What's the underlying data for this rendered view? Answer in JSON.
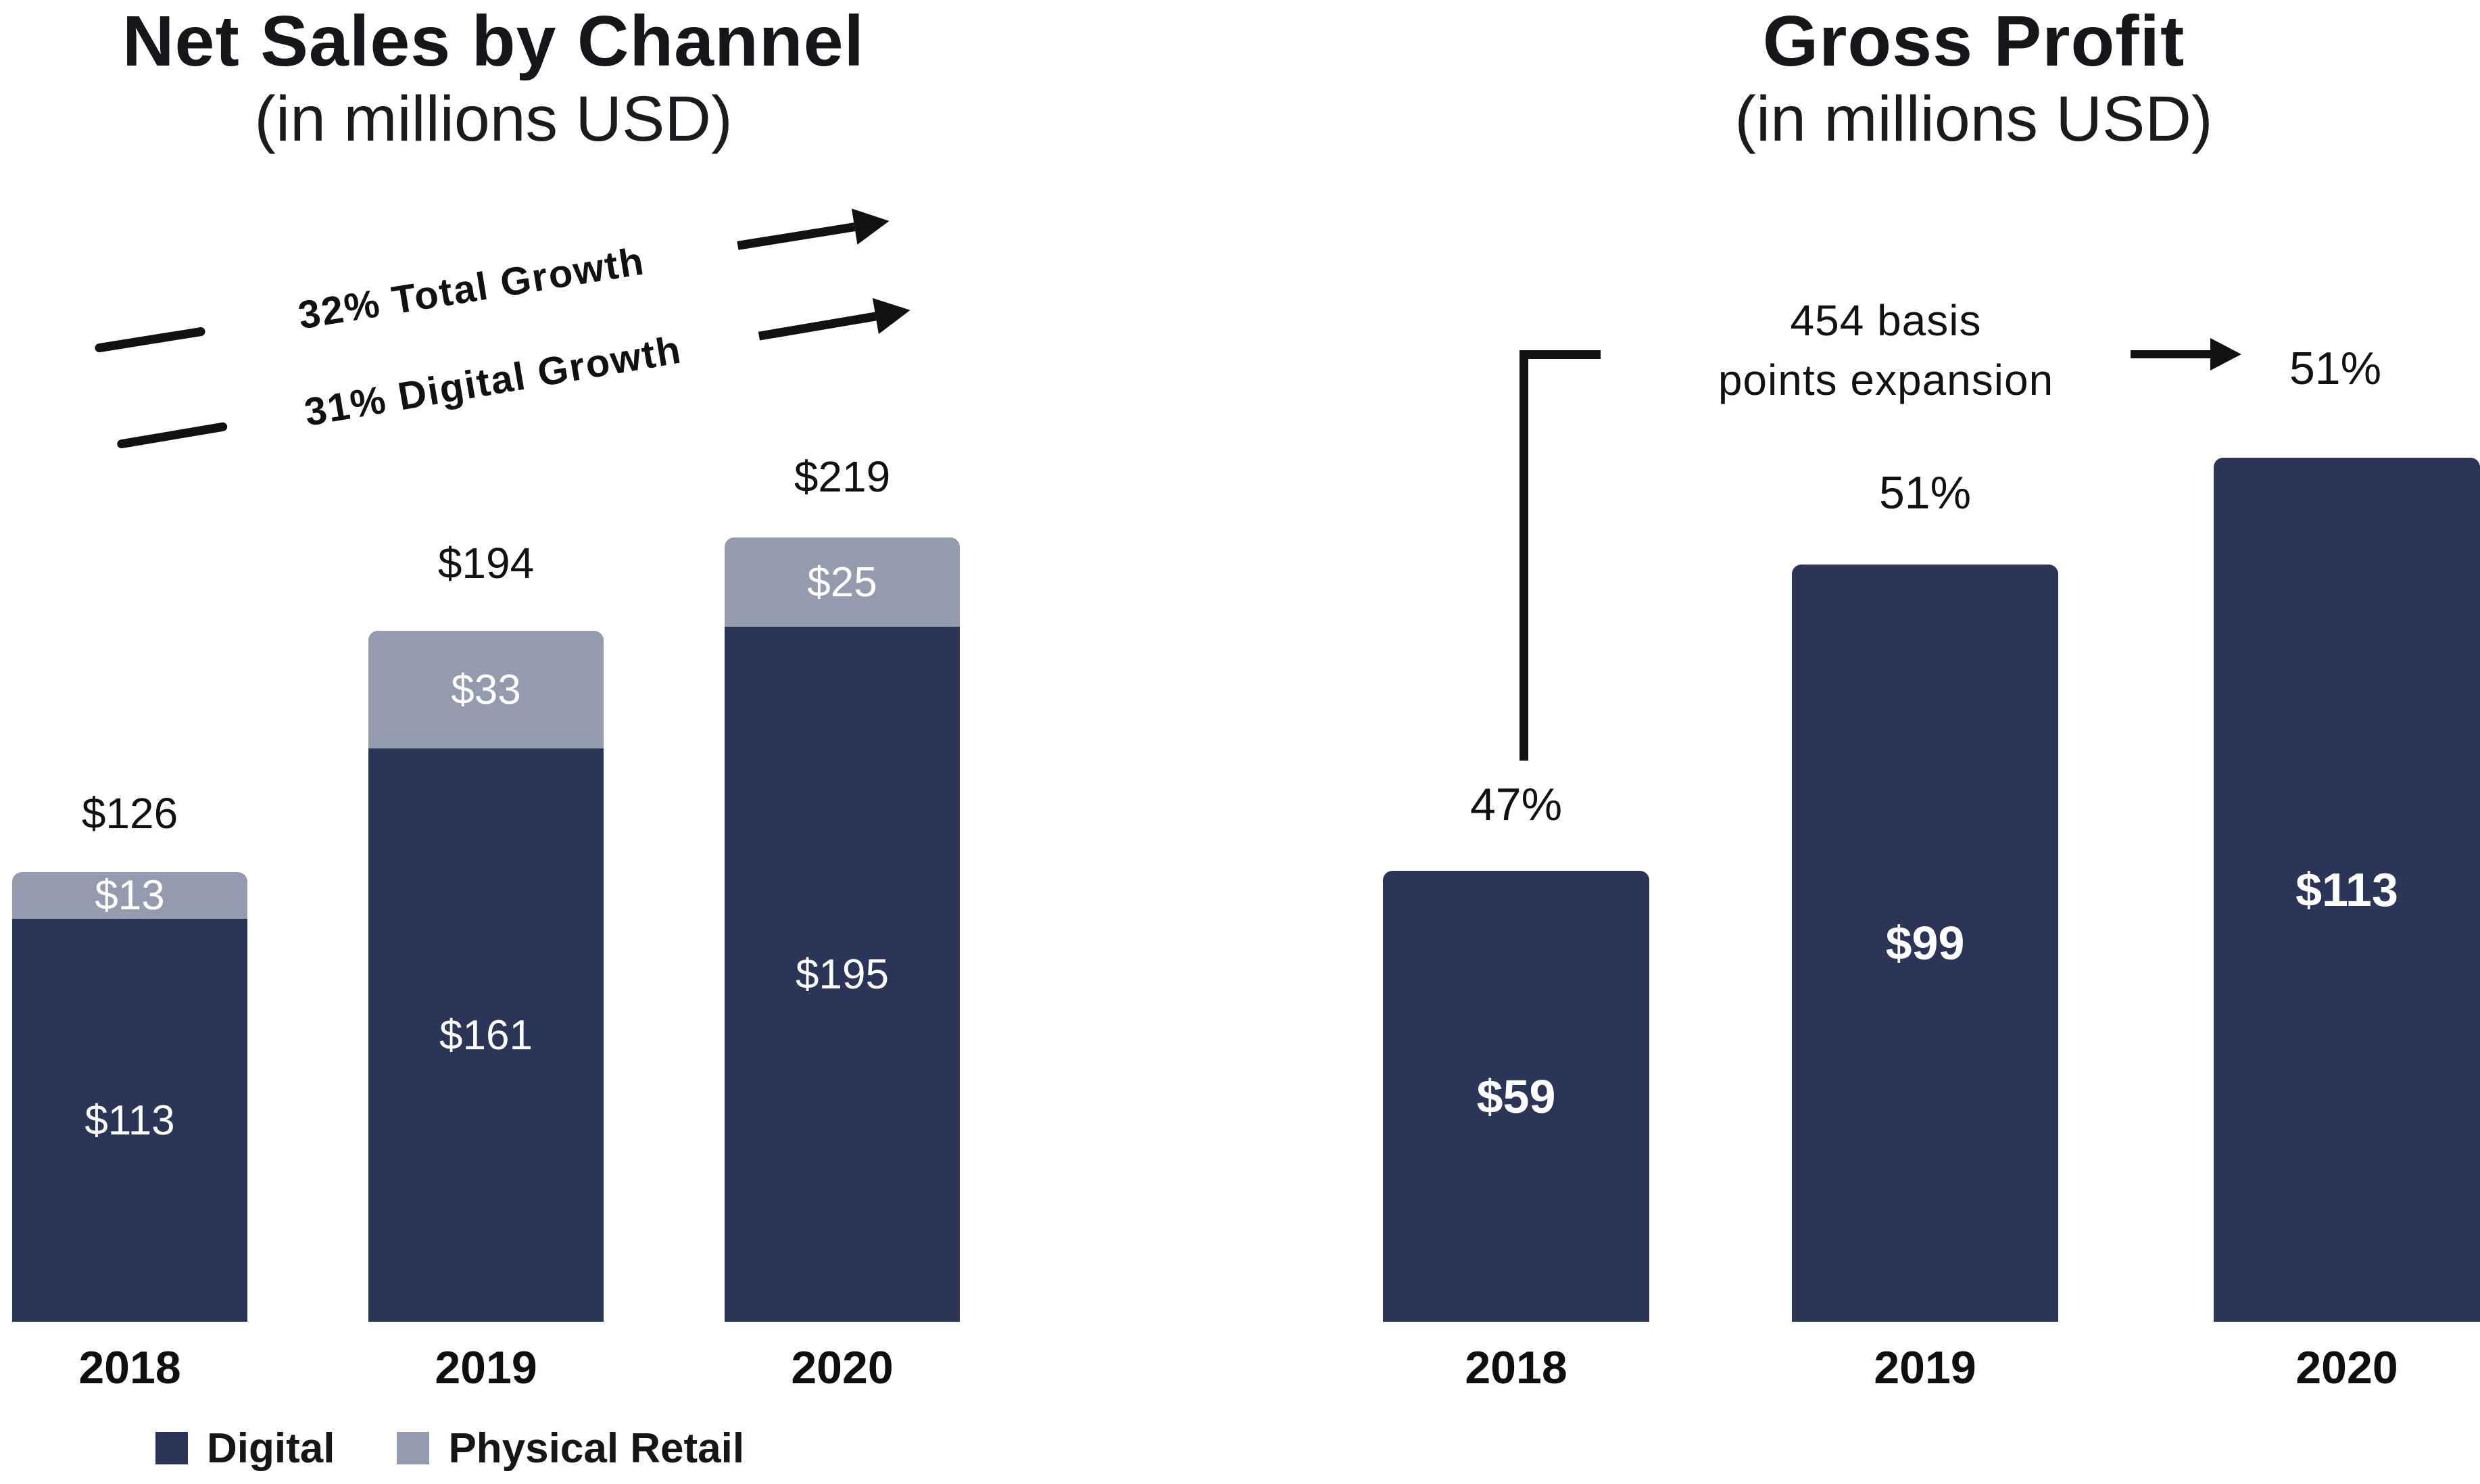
{
  "colors": {
    "digital_navy": "#2a3557",
    "physical_gray": "#939bae",
    "ink": "#111111",
    "background": "#ffffff"
  },
  "chart_data": [
    {
      "type": "bar",
      "stacked": true,
      "title": "Net Sales by Channel",
      "subtitle": "(in millions USD)",
      "categories": [
        "2018",
        "2019",
        "2020"
      ],
      "series": [
        {
          "name": "Digital",
          "color": "#2a3557",
          "values": [
            113,
            161,
            195
          ]
        },
        {
          "name": "Physical Retail",
          "color": "#939bae",
          "values": [
            13,
            33,
            25
          ]
        }
      ],
      "totals": [
        126,
        194,
        219
      ],
      "labels": {
        "totals": [
          "$126",
          "$194",
          "$219"
        ],
        "digital": [
          "$113",
          "$161",
          "$195"
        ],
        "physical": [
          "$13",
          "$33",
          "$25"
        ]
      },
      "annotations": [
        {
          "text": "32% Total Growth"
        },
        {
          "text": "31% Digital Growth"
        }
      ],
      "legend_position": "bottom",
      "ylim": [
        0,
        245
      ],
      "gridlines": false
    },
    {
      "type": "bar",
      "stacked": false,
      "title": "Gross Profit",
      "subtitle": "(in millions USD)",
      "categories": [
        "2018",
        "2019",
        "2020"
      ],
      "values": [
        59,
        99,
        113
      ],
      "labels": {
        "values": [
          "$59",
          "$99",
          "$113"
        ],
        "percents": [
          "47%",
          "51%",
          "51%"
        ]
      },
      "annotation": {
        "line1": "454 basis",
        "line2": "points expansion"
      },
      "ylim": [
        0,
        120
      ],
      "gridlines": false
    }
  ]
}
